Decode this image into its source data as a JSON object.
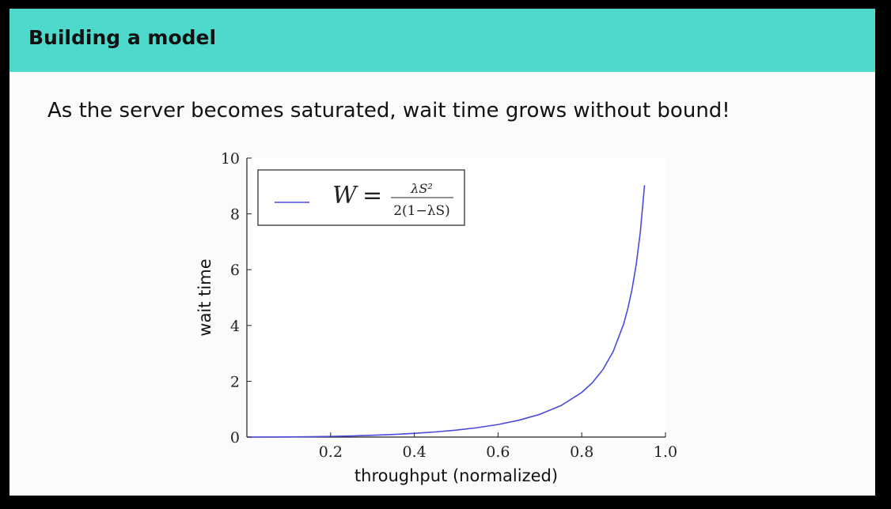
{
  "header": {
    "title": "Building a model"
  },
  "main": {
    "subtitle": "As the server becomes saturated, wait time grows without bound!"
  },
  "chart_data": {
    "type": "line",
    "title": "",
    "xlabel": "throughput (normalized)",
    "ylabel": "wait time",
    "xlim": [
      0,
      1.0
    ],
    "ylim": [
      0,
      10
    ],
    "xticks": [
      "0.2",
      "0.4",
      "0.6",
      "0.8",
      "1.0"
    ],
    "yticks": [
      "0",
      "2",
      "4",
      "6",
      "8",
      "10"
    ],
    "grid": false,
    "legend_position": "top-left",
    "legend": {
      "lhs": "W",
      "equals": "=",
      "numerator": "λS²",
      "denominator": "2(1−λS)"
    },
    "series": [
      {
        "color": "#4a4adb",
        "x": [
          0.0,
          0.05,
          0.1,
          0.15,
          0.2,
          0.25,
          0.3,
          0.35,
          0.4,
          0.45,
          0.5,
          0.55,
          0.6,
          0.65,
          0.7,
          0.75,
          0.8,
          0.825,
          0.85,
          0.875,
          0.9,
          0.91,
          0.92,
          0.93,
          0.94,
          0.95
        ],
        "y": [
          0.0,
          0.00132,
          0.00556,
          0.01324,
          0.025,
          0.04167,
          0.06429,
          0.09423,
          0.13333,
          0.18409,
          0.25,
          0.33611,
          0.45,
          0.60357,
          0.81667,
          1.125,
          1.6,
          1.94464,
          2.40833,
          3.0625,
          4.05,
          4.60056,
          5.29,
          6.17786,
          7.36333,
          9.025
        ]
      }
    ]
  },
  "colors": {
    "header_bar": "#4dd9cb",
    "slide_background": "#fbfbfb",
    "line": "#4a4adb"
  }
}
